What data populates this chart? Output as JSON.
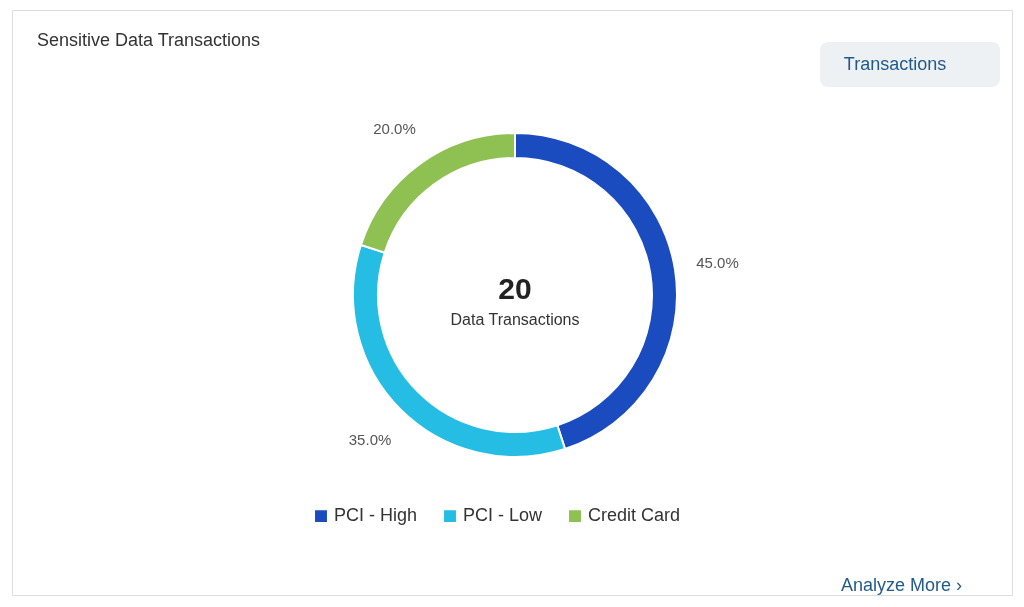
{
  "chart_data": {
    "type": "donut",
    "title": "Sensitive Data Transactions",
    "categories": [
      "PCI - High",
      "PCI - Low",
      "Credit Card"
    ],
    "values": [
      45,
      35,
      20
    ],
    "colors": [
      "#1a4bbf",
      "#25bde3",
      "#8fc052"
    ],
    "value_labels": [
      "45.0%",
      "35.0%",
      "20.0%"
    ],
    "legend": "bottom",
    "annotations": [
      "20",
      "Data Transactions",
      "Transactions",
      "Analyze More ›"
    ]
  }
}
